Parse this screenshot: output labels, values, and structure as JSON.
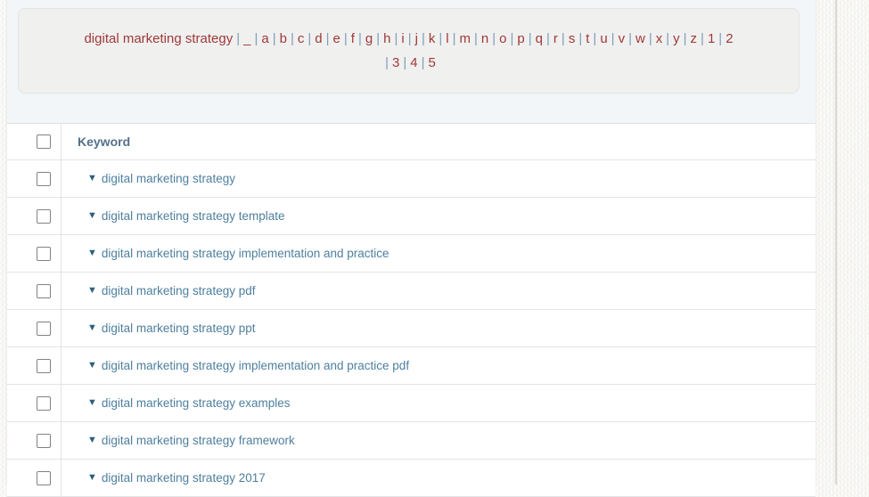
{
  "alphabet_bar": {
    "seed": "digital marketing strategy",
    "separator": "|",
    "line1_letters": [
      "_",
      "a",
      "b",
      "c",
      "d",
      "e",
      "f",
      "g",
      "h",
      "i",
      "j",
      "k",
      "l",
      "m",
      "n",
      "o",
      "p",
      "q",
      "r",
      "s",
      "t",
      "u",
      "v",
      "w",
      "x",
      "y",
      "z",
      "1",
      "2"
    ],
    "line2_letters": [
      "3",
      "4",
      "5"
    ]
  },
  "table": {
    "header": {
      "keyword_label": "Keyword"
    },
    "row_icon": "▼",
    "rows": [
      {
        "keyword": "digital marketing strategy"
      },
      {
        "keyword": "digital marketing strategy template"
      },
      {
        "keyword": "digital marketing strategy implementation and practice"
      },
      {
        "keyword": "digital marketing strategy pdf"
      },
      {
        "keyword": "digital marketing strategy ppt"
      },
      {
        "keyword": "digital marketing strategy implementation and practice pdf"
      },
      {
        "keyword": "digital marketing strategy examples"
      },
      {
        "keyword": "digital marketing strategy framework"
      },
      {
        "keyword": "digital marketing strategy 2017"
      }
    ]
  },
  "colors": {
    "seed_and_letter_red": "#9e3939",
    "separator_blue": "#7f9db9",
    "keyword_link_blue": "#4e7f9e",
    "triangle_blue": "#2e5f7d",
    "header_label_blue_gray": "#54708c",
    "content_background": "#f2f6f8",
    "alphabet_box_background": "#f0f0ef",
    "table_border": "#e1e5e6"
  }
}
